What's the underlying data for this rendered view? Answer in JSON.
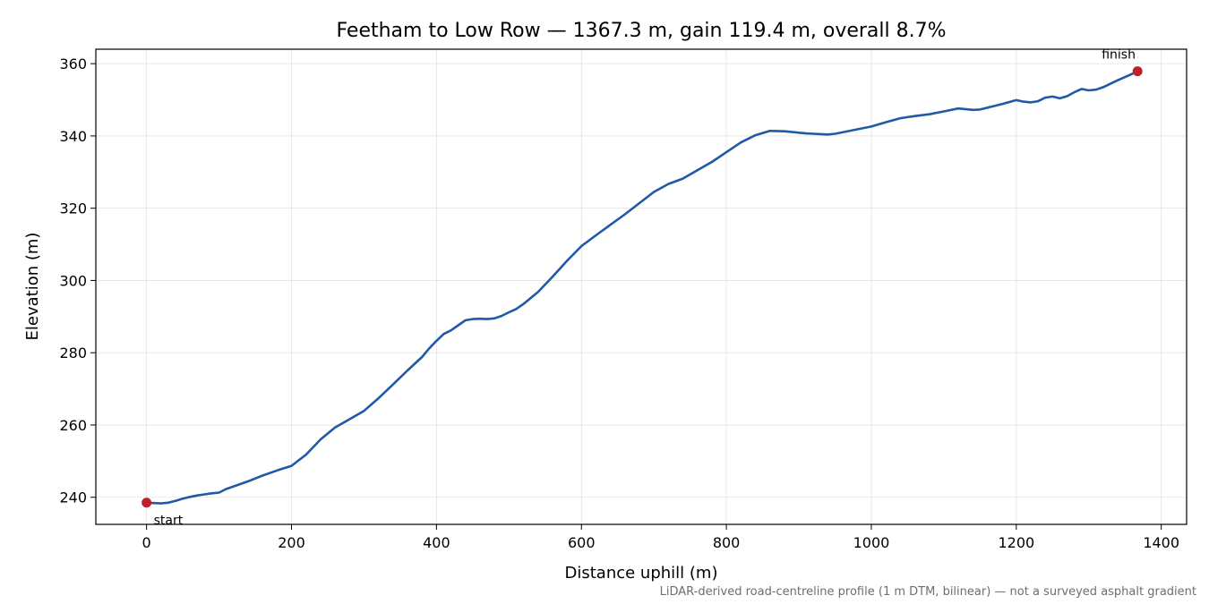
{
  "chart_data": {
    "type": "line",
    "title": "Feetham to Low Row — 1367.3 m, gain 119.4 m, overall 8.7%",
    "xlabel": "Distance uphill (m)",
    "ylabel": "Elevation (m)",
    "xlim": [
      -70,
      1435
    ],
    "ylim": [
      232.5,
      364
    ],
    "x_ticks": [
      0,
      200,
      400,
      600,
      800,
      1000,
      1200,
      1400
    ],
    "y_ticks": [
      240,
      260,
      280,
      300,
      320,
      340,
      360
    ],
    "grid": true,
    "colors": {
      "line": "#1f5aa6",
      "marker": "#c0202a"
    },
    "series": [
      {
        "x": [
          0,
          10,
          20,
          30,
          40,
          50,
          60,
          70,
          80,
          90,
          100,
          110,
          120,
          140,
          160,
          180,
          200,
          220,
          240,
          260,
          280,
          300,
          320,
          340,
          360,
          380,
          390,
          400,
          410,
          420,
          430,
          440,
          450,
          460,
          470,
          480,
          490,
          500,
          510,
          520,
          540,
          560,
          580,
          600,
          620,
          640,
          660,
          680,
          700,
          720,
          740,
          760,
          780,
          800,
          820,
          840,
          860,
          880,
          900,
          910,
          920,
          930,
          940,
          950,
          960,
          980,
          1000,
          1020,
          1040,
          1060,
          1080,
          1100,
          1120,
          1140,
          1150,
          1160,
          1180,
          1200,
          1210,
          1220,
          1230,
          1240,
          1250,
          1260,
          1270,
          1280,
          1290,
          1300,
          1310,
          1320,
          1340,
          1360,
          1367.3
        ],
        "y": [
          238.5,
          238.4,
          238.3,
          238.5,
          239.0,
          239.6,
          240.1,
          240.5,
          240.8,
          241.1,
          241.3,
          242.3,
          243.0,
          244.4,
          246.0,
          247.4,
          248.7,
          251.8,
          256.0,
          259.3,
          261.6,
          263.9,
          267.4,
          271.2,
          275.1,
          278.8,
          281.2,
          283.3,
          285.2,
          286.2,
          287.6,
          289.0,
          289.3,
          289.4,
          289.3,
          289.5,
          290.2,
          291.2,
          292.1,
          293.5,
          296.8,
          301.0,
          305.4,
          309.5,
          312.5,
          315.4,
          318.3,
          321.4,
          324.5,
          326.7,
          328.2,
          330.5,
          332.8,
          335.5,
          338.2,
          340.2,
          341.4,
          341.3,
          340.9,
          340.7,
          340.6,
          340.5,
          340.4,
          340.6,
          341.0,
          341.8,
          342.6,
          343.8,
          344.9,
          345.5,
          346.0,
          346.8,
          347.6,
          347.2,
          347.3,
          347.8,
          348.8,
          349.9,
          349.5,
          349.3,
          349.6,
          350.6,
          350.9,
          350.4,
          351.0,
          352.1,
          353.0,
          352.6,
          352.8,
          353.5,
          355.4,
          357.2,
          357.9
        ]
      }
    ],
    "markers": [
      {
        "label": "start",
        "x": 0,
        "y": 238.5
      },
      {
        "label": "finish",
        "x": 1367.3,
        "y": 357.9
      }
    ],
    "footnote": "LiDAR-derived road-centreline profile (1 m DTM, bilinear) — not a surveyed asphalt gradient"
  }
}
